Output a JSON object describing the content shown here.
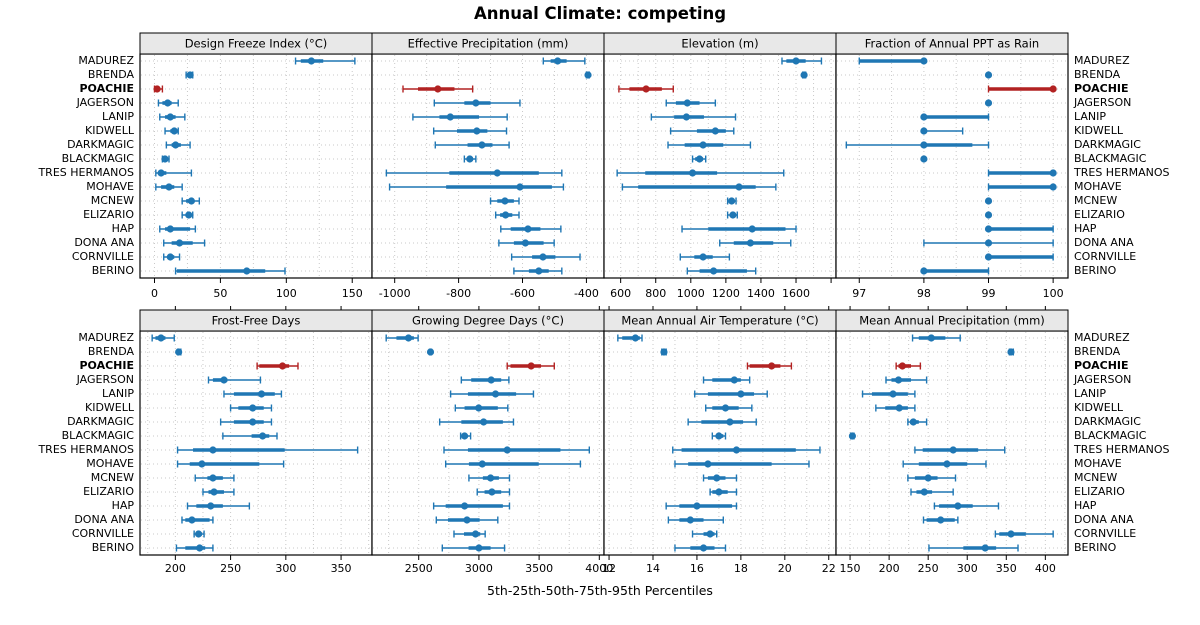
{
  "title": "Annual Climate: competing",
  "footer": "5th-25th-50th-75th-95th Percentiles",
  "percentile_labels": [
    "5th",
    "25th",
    "50th",
    "75th",
    "95th"
  ],
  "highlight_site": "POACHIE",
  "colors": {
    "series": "#1f77b4",
    "highlight": "#b22222",
    "grid": "#c9c9c9",
    "strip_bg": "#e8e8e8",
    "border": "#000000",
    "text": "#000000"
  },
  "sites": [
    "MADUREZ",
    "BRENDA",
    "POACHIE",
    "JAGERSON",
    "LANIP",
    "KIDWELL",
    "DARKMAGIC",
    "BLACKMAGIC",
    "TRES HERMANOS",
    "MOHAVE",
    "MCNEW",
    "ELIZARIO",
    "HAP",
    "DONA ANA",
    "CORNVILLE",
    "BERINO"
  ],
  "chart_data": {
    "type": "dot-whisker-percentile-trellis",
    "note": "Each series entry is [p5,p25,p50,p75,p95] per site, site order as in sites[]",
    "panels": [
      {
        "title": "Design Freeze Index (°C)",
        "row": 0,
        "col": 0,
        "xlim": [
          -11,
          165
        ],
        "ticks": [
          0,
          50,
          100,
          150
        ],
        "grid_step": 25,
        "extra_ticks": [],
        "series": [
          [
            107,
            111,
            119,
            128,
            152
          ],
          [
            24,
            26,
            27,
            27,
            29
          ],
          [
            0,
            0,
            2,
            4,
            6
          ],
          [
            3,
            6,
            10,
            13,
            18
          ],
          [
            4,
            8,
            12,
            16,
            23
          ],
          [
            8,
            12,
            15,
            17,
            18
          ],
          [
            9,
            13,
            16,
            20,
            27
          ],
          [
            6,
            7,
            8,
            9,
            11
          ],
          [
            1,
            3,
            5,
            9,
            28
          ],
          [
            1,
            5,
            11,
            15,
            21
          ],
          [
            21,
            24,
            28,
            30,
            34
          ],
          [
            21,
            24,
            26,
            28,
            29
          ],
          [
            4,
            8,
            12,
            27,
            31
          ],
          [
            7,
            13,
            19,
            29,
            38
          ],
          [
            7,
            10,
            12,
            15,
            19
          ],
          [
            16,
            17,
            70,
            84,
            99
          ]
        ]
      },
      {
        "title": "Effective Precipitation (mm)",
        "row": 0,
        "col": 1,
        "xlim": [
          -1071,
          -345
        ],
        "ticks": [
          -1000,
          -800,
          -600,
          -400
        ],
        "grid_step": 100,
        "extra_ticks": [],
        "series": [
          [
            -535,
            -512,
            -490,
            -462,
            -405
          ],
          [
            -400,
            -397,
            -395,
            -393,
            -391
          ],
          [
            -974,
            -927,
            -865,
            -813,
            -756
          ],
          [
            -876,
            -782,
            -746,
            -700,
            -608
          ],
          [
            -943,
            -860,
            -826,
            -736,
            -648
          ],
          [
            -878,
            -805,
            -743,
            -710,
            -650
          ],
          [
            -873,
            -772,
            -727,
            -694,
            -642
          ],
          [
            -782,
            -772,
            -765,
            -755,
            -746
          ],
          [
            -1026,
            -829,
            -679,
            -549,
            -477
          ],
          [
            -1016,
            -839,
            -608,
            -508,
            -472
          ],
          [
            -700,
            -679,
            -655,
            -627,
            -611
          ],
          [
            -684,
            -670,
            -653,
            -632,
            -611
          ],
          [
            -668,
            -637,
            -583,
            -544,
            -480
          ],
          [
            -674,
            -627,
            -591,
            -534,
            -501
          ],
          [
            -634,
            -570,
            -536,
            -497,
            -420
          ],
          [
            -627,
            -580,
            -549,
            -518,
            -477
          ]
        ]
      },
      {
        "title": "Elevation (m)",
        "row": 0,
        "col": 2,
        "xlim": [
          505,
          1828
        ],
        "ticks": [
          600,
          800,
          1000,
          1200,
          1400,
          1600
        ],
        "grid_step": 100,
        "extra_ticks": [
          1800
        ],
        "series": [
          [
            1520,
            1545,
            1600,
            1655,
            1745
          ],
          [
            1638,
            1643,
            1646,
            1650,
            1655
          ],
          [
            590,
            650,
            745,
            835,
            900
          ],
          [
            860,
            915,
            980,
            1050,
            1140
          ],
          [
            775,
            905,
            975,
            1075,
            1255
          ],
          [
            885,
            1035,
            1140,
            1200,
            1245
          ],
          [
            870,
            965,
            1070,
            1185,
            1340
          ],
          [
            1010,
            1025,
            1050,
            1070,
            1085
          ],
          [
            580,
            740,
            1010,
            1150,
            1530
          ],
          [
            610,
            700,
            1275,
            1370,
            1485
          ],
          [
            1210,
            1222,
            1233,
            1245,
            1258
          ],
          [
            1210,
            1228,
            1240,
            1252,
            1265
          ],
          [
            950,
            1100,
            1350,
            1540,
            1600
          ],
          [
            1165,
            1245,
            1340,
            1470,
            1570
          ],
          [
            940,
            1020,
            1070,
            1125,
            1220
          ],
          [
            980,
            1050,
            1130,
            1320,
            1370
          ]
        ]
      },
      {
        "title": "Fraction of Annual PPT as Rain",
        "row": 0,
        "col": 3,
        "xlim": [
          96.64,
          100.23
        ],
        "ticks": [
          97,
          98,
          99,
          100
        ],
        "grid_step": 0.5,
        "extra_ticks": [],
        "series": [
          [
            97,
            97,
            98,
            98,
            98
          ],
          [
            99,
            99,
            99,
            99,
            99
          ],
          [
            99,
            99,
            100,
            100,
            100
          ],
          [
            99,
            99,
            99,
            99,
            99
          ],
          [
            98,
            98,
            98,
            99,
            99
          ],
          [
            98,
            98,
            98,
            98,
            98.6
          ],
          [
            96.8,
            98,
            98,
            98.75,
            99
          ],
          [
            98,
            98,
            98,
            98,
            98
          ],
          [
            99,
            99,
            100,
            100,
            100
          ],
          [
            99,
            99,
            100,
            100,
            100
          ],
          [
            99,
            99,
            99,
            99,
            99
          ],
          [
            99,
            99,
            99,
            99,
            99
          ],
          [
            99,
            99,
            99,
            100,
            100
          ],
          [
            98,
            99,
            99,
            99,
            100
          ],
          [
            99,
            99,
            99,
            100,
            100
          ],
          [
            98,
            98,
            98,
            99,
            99
          ]
        ]
      },
      {
        "title": "Frost-Free Days",
        "row": 1,
        "col": 0,
        "xlim": [
          168,
          378
        ],
        "ticks": [
          200,
          250,
          300,
          350
        ],
        "grid_step": 25,
        "extra_ticks": [],
        "series": [
          [
            179,
            182,
            187,
            191,
            199
          ],
          [
            202,
            203,
            203,
            204,
            205
          ],
          [
            274,
            276,
            297,
            303,
            311
          ],
          [
            230,
            234,
            244,
            247,
            277
          ],
          [
            244,
            253,
            278,
            290,
            296
          ],
          [
            250,
            257,
            270,
            280,
            287
          ],
          [
            241,
            253,
            270,
            280,
            287
          ],
          [
            243,
            269,
            279,
            285,
            292
          ],
          [
            202,
            216,
            234,
            299,
            365
          ],
          [
            202,
            213,
            224,
            276,
            298
          ],
          [
            218,
            229,
            234,
            243,
            253
          ],
          [
            225,
            230,
            235,
            244,
            253
          ],
          [
            211,
            219,
            232,
            243,
            267
          ],
          [
            206,
            209,
            215,
            231,
            234
          ],
          [
            217,
            219,
            221,
            224,
            226
          ],
          [
            201,
            209,
            222,
            227,
            234
          ]
        ]
      },
      {
        "title": "Growing Degree Days (°C)",
        "row": 1,
        "col": 1,
        "xlim": [
          2112,
          4039
        ],
        "ticks": [
          2500,
          3000,
          3500,
          4000
        ],
        "grid_step": 250,
        "extra_ticks": [],
        "series": [
          [
            2230,
            2315,
            2415,
            2460,
            2495
          ],
          [
            2590,
            2595,
            2598,
            2601,
            2606
          ],
          [
            3235,
            3262,
            3434,
            3516,
            3626
          ],
          [
            2854,
            2936,
            3102,
            3185,
            3249
          ],
          [
            2765,
            2909,
            3138,
            3309,
            3453
          ],
          [
            2804,
            2881,
            2998,
            3157,
            3240
          ],
          [
            2674,
            2854,
            3039,
            3199,
            3287
          ],
          [
            2848,
            2865,
            2881,
            2906,
            2931
          ],
          [
            2710,
            2909,
            3235,
            3677,
            3917
          ],
          [
            2724,
            2917,
            3028,
            3497,
            3843
          ],
          [
            2917,
            3033,
            3097,
            3166,
            3254
          ],
          [
            2986,
            3047,
            3108,
            3185,
            3254
          ],
          [
            2624,
            2724,
            2881,
            3199,
            3254
          ],
          [
            2646,
            2743,
            2901,
            3006,
            3157
          ],
          [
            2793,
            2876,
            2972,
            3011,
            3052
          ],
          [
            2696,
            2914,
            3000,
            3097,
            3213
          ]
        ]
      },
      {
        "title": "Mean Annual Air Temperature (°C)",
        "row": 1,
        "col": 2,
        "xlim": [
          11.77,
          22.33
        ],
        "ticks": [
          12,
          14,
          16,
          18,
          20,
          22
        ],
        "grid_step": 1,
        "extra_ticks": [],
        "series": [
          [
            12.4,
            12.6,
            13.2,
            13.4,
            13.5
          ],
          [
            14.4,
            14.5,
            14.5,
            14.5,
            14.6
          ],
          [
            18.3,
            18.4,
            19.4,
            19.8,
            20.3
          ],
          [
            16.3,
            16.7,
            17.7,
            18.0,
            18.4
          ],
          [
            15.9,
            16.5,
            18.0,
            18.6,
            19.2
          ],
          [
            16.4,
            16.7,
            17.3,
            17.9,
            18.5
          ],
          [
            15.6,
            16.2,
            17.5,
            18.1,
            18.7
          ],
          [
            16.7,
            16.9,
            17.0,
            17.2,
            17.3
          ],
          [
            14.9,
            15.3,
            17.8,
            20.5,
            21.6
          ],
          [
            15.0,
            15.6,
            16.5,
            19.4,
            21.1
          ],
          [
            16.3,
            16.5,
            16.9,
            17.3,
            17.8
          ],
          [
            16.6,
            16.7,
            17.0,
            17.4,
            17.8
          ],
          [
            14.6,
            15.2,
            16.0,
            17.6,
            17.8
          ],
          [
            14.7,
            15.2,
            15.7,
            16.3,
            17.2
          ],
          [
            15.8,
            16.3,
            16.6,
            16.8,
            16.9
          ],
          [
            15.0,
            15.7,
            16.3,
            16.8,
            17.3
          ]
        ]
      },
      {
        "title": "Mean Annual Precipitation (mm)",
        "row": 1,
        "col": 3,
        "xlim": [
          132,
          429
        ],
        "ticks": [
          150,
          200,
          250,
          300,
          350,
          400
        ],
        "grid_step": 25,
        "extra_ticks": [],
        "series": [
          [
            230,
            238,
            254,
            272,
            291
          ],
          [
            354,
            355,
            356,
            357,
            359
          ],
          [
            209,
            212,
            217,
            228,
            240
          ],
          [
            196,
            203,
            212,
            228,
            248
          ],
          [
            166,
            178,
            205,
            224,
            233
          ],
          [
            183,
            195,
            213,
            224,
            233
          ],
          [
            224,
            227,
            231,
            238,
            248
          ],
          [
            151,
            152,
            153,
            154,
            155
          ],
          [
            233,
            243,
            282,
            314,
            348
          ],
          [
            218,
            238,
            274,
            300,
            324
          ],
          [
            224,
            233,
            250,
            262,
            285
          ],
          [
            228,
            235,
            245,
            255,
            282
          ],
          [
            258,
            264,
            288,
            307,
            340
          ],
          [
            244,
            248,
            266,
            284,
            288
          ],
          [
            336,
            341,
            356,
            375,
            410
          ],
          [
            251,
            295,
            323,
            337,
            365
          ]
        ]
      }
    ]
  }
}
